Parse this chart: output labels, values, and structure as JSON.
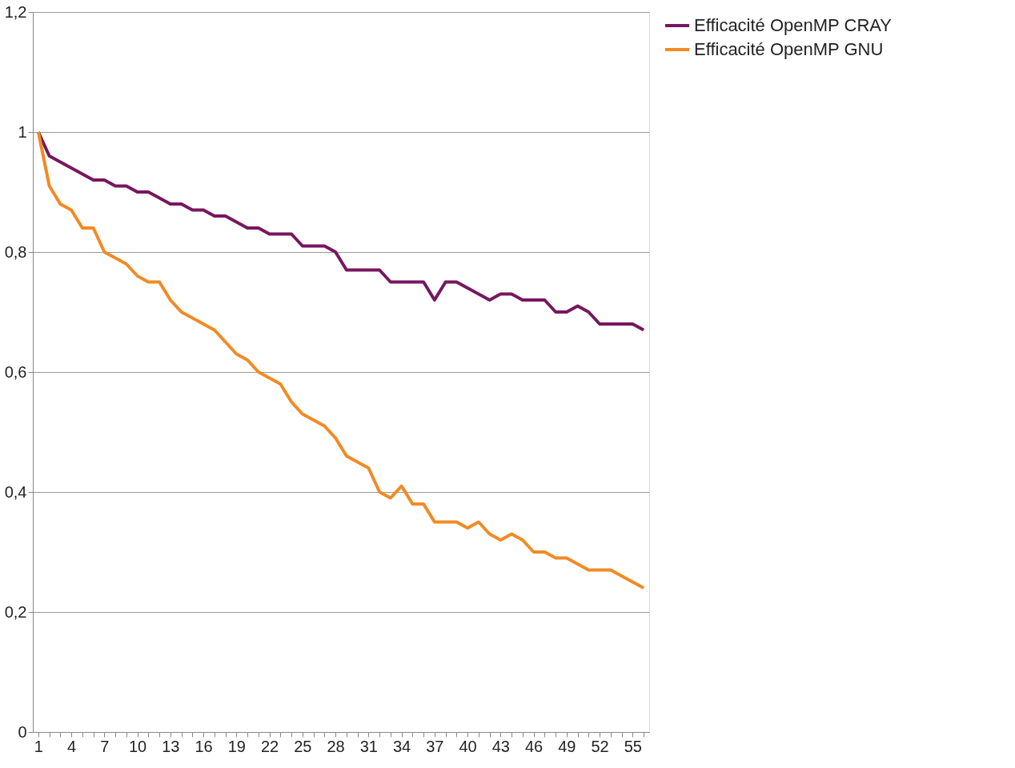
{
  "chart_data": {
    "type": "line",
    "categories": [
      "1",
      null,
      null,
      "4",
      null,
      null,
      "7",
      null,
      null,
      "10",
      null,
      null,
      "13",
      null,
      null,
      "16",
      null,
      null,
      "19",
      null,
      null,
      "22",
      null,
      null,
      "25",
      null,
      null,
      "28",
      null,
      null,
      "31",
      null,
      null,
      "34",
      null,
      null,
      "37",
      null,
      null,
      "40",
      null,
      null,
      "43",
      null,
      null,
      "46",
      null,
      null,
      "49",
      null,
      null,
      "52",
      null,
      null,
      "55",
      null
    ],
    "series": [
      {
        "name": "Efficacité OpenMP CRAY",
        "color": "#77175f",
        "values": [
          1.0,
          0.96,
          0.95,
          0.94,
          0.93,
          0.92,
          0.92,
          0.91,
          0.91,
          0.9,
          0.9,
          0.89,
          0.88,
          0.88,
          0.87,
          0.87,
          0.86,
          0.86,
          0.85,
          0.84,
          0.84,
          0.83,
          0.83,
          0.83,
          0.81,
          0.81,
          0.81,
          0.8,
          0.77,
          0.77,
          0.77,
          0.77,
          0.75,
          0.75,
          0.75,
          0.75,
          0.72,
          0.75,
          0.75,
          0.74,
          0.73,
          0.72,
          0.73,
          0.73,
          0.72,
          0.72,
          0.72,
          0.7,
          0.7,
          0.71,
          0.7,
          0.68,
          0.68,
          0.68,
          0.68,
          0.67
        ]
      },
      {
        "name": "Efficacité OpenMP GNU",
        "color": "#f28a24",
        "values": [
          1.0,
          0.91,
          0.88,
          0.87,
          0.84,
          0.84,
          0.8,
          0.79,
          0.78,
          0.76,
          0.75,
          0.75,
          0.72,
          0.7,
          0.69,
          0.68,
          0.67,
          0.65,
          0.63,
          0.62,
          0.6,
          0.59,
          0.58,
          0.55,
          0.53,
          0.52,
          0.51,
          0.49,
          0.46,
          0.45,
          0.44,
          0.4,
          0.39,
          0.41,
          0.38,
          0.38,
          0.35,
          0.35,
          0.35,
          0.34,
          0.35,
          0.33,
          0.32,
          0.33,
          0.32,
          0.3,
          0.3,
          0.29,
          0.29,
          0.28,
          0.27,
          0.27,
          0.27,
          0.26,
          0.25,
          0.24
        ]
      }
    ],
    "ylim": [
      0,
      1.2
    ],
    "yticks": [
      0,
      {
        "value": 0.2,
        "label": "0,2"
      },
      {
        "value": 0.4,
        "label": "0,4"
      },
      {
        "value": 0.6,
        "label": "0,6"
      },
      {
        "value": 0.8,
        "label": "0,8"
      },
      1,
      {
        "value": 1.2,
        "label": "1,2"
      }
    ],
    "grid": "y",
    "legend": "right",
    "marker": "none",
    "line_style": "solid"
  }
}
